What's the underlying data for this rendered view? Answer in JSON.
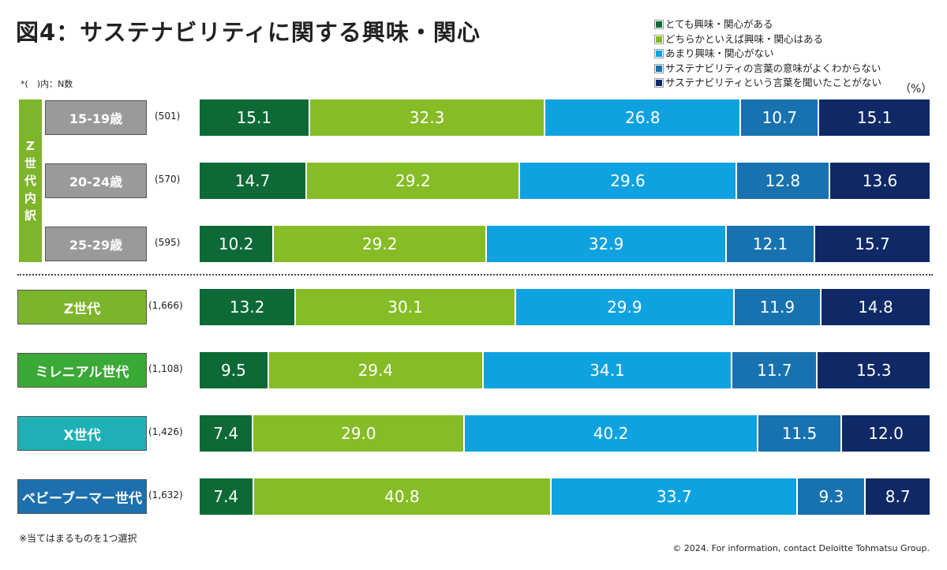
{
  "title": "図4：サステナビリティに関する興味・関心",
  "note": "*(　)内：N数",
  "unit": "（%）",
  "group_label": [
    "Z",
    "世",
    "代",
    "内",
    "訳"
  ],
  "footnote": "※当てはまるものを1つ選択",
  "copyright": "© 2024. For information, contact Deloitte Tohmatsu Group.",
  "chart_data": {
    "type": "bar",
    "stacked": true,
    "orientation": "horizontal",
    "legend_position": "top-right",
    "series_names": [
      "とても興味・関心がある",
      "どちらかといえば興味・関心はある",
      "あまり興味・関心がない",
      "サステナビリティの言葉の意味がよくわからない",
      "サステナビリティという言葉を聞いたことがない"
    ],
    "colors": [
      "#0d6a37",
      "#86bc25",
      "#0fa2e0",
      "#1872b0",
      "#0f2966"
    ],
    "categories": [
      {
        "label": "15-19歳",
        "n": "(501)",
        "label_color": "#9a9a9a",
        "values": [
          15.1,
          32.3,
          26.8,
          10.7,
          15.1
        ]
      },
      {
        "label": "20-24歳",
        "n": "(570)",
        "label_color": "#9a9a9a",
        "values": [
          14.7,
          29.2,
          29.6,
          12.8,
          13.6
        ]
      },
      {
        "label": "25-29歳",
        "n": "(595)",
        "label_color": "#9a9a9a",
        "values": [
          10.2,
          29.2,
          32.9,
          12.1,
          15.7
        ]
      },
      {
        "label": "Z世代",
        "n": "(1,666)",
        "label_color": "#7cb52c",
        "values": [
          13.2,
          30.1,
          29.9,
          11.9,
          14.8
        ]
      },
      {
        "label": "ミレニアル世代",
        "n": "(1,108)",
        "label_color": "#3aa935",
        "values": [
          9.5,
          29.4,
          34.1,
          11.7,
          15.3
        ]
      },
      {
        "label": "X世代",
        "n": "(1,426)",
        "label_color": "#1fb0b6",
        "values": [
          7.4,
          29.0,
          40.2,
          11.5,
          12.0
        ]
      },
      {
        "label": "ベビーブーマー世代",
        "n": "(1,632)",
        "label_color": "#1d70ad",
        "values": [
          7.4,
          40.8,
          33.7,
          9.3,
          8.7
        ]
      }
    ]
  }
}
